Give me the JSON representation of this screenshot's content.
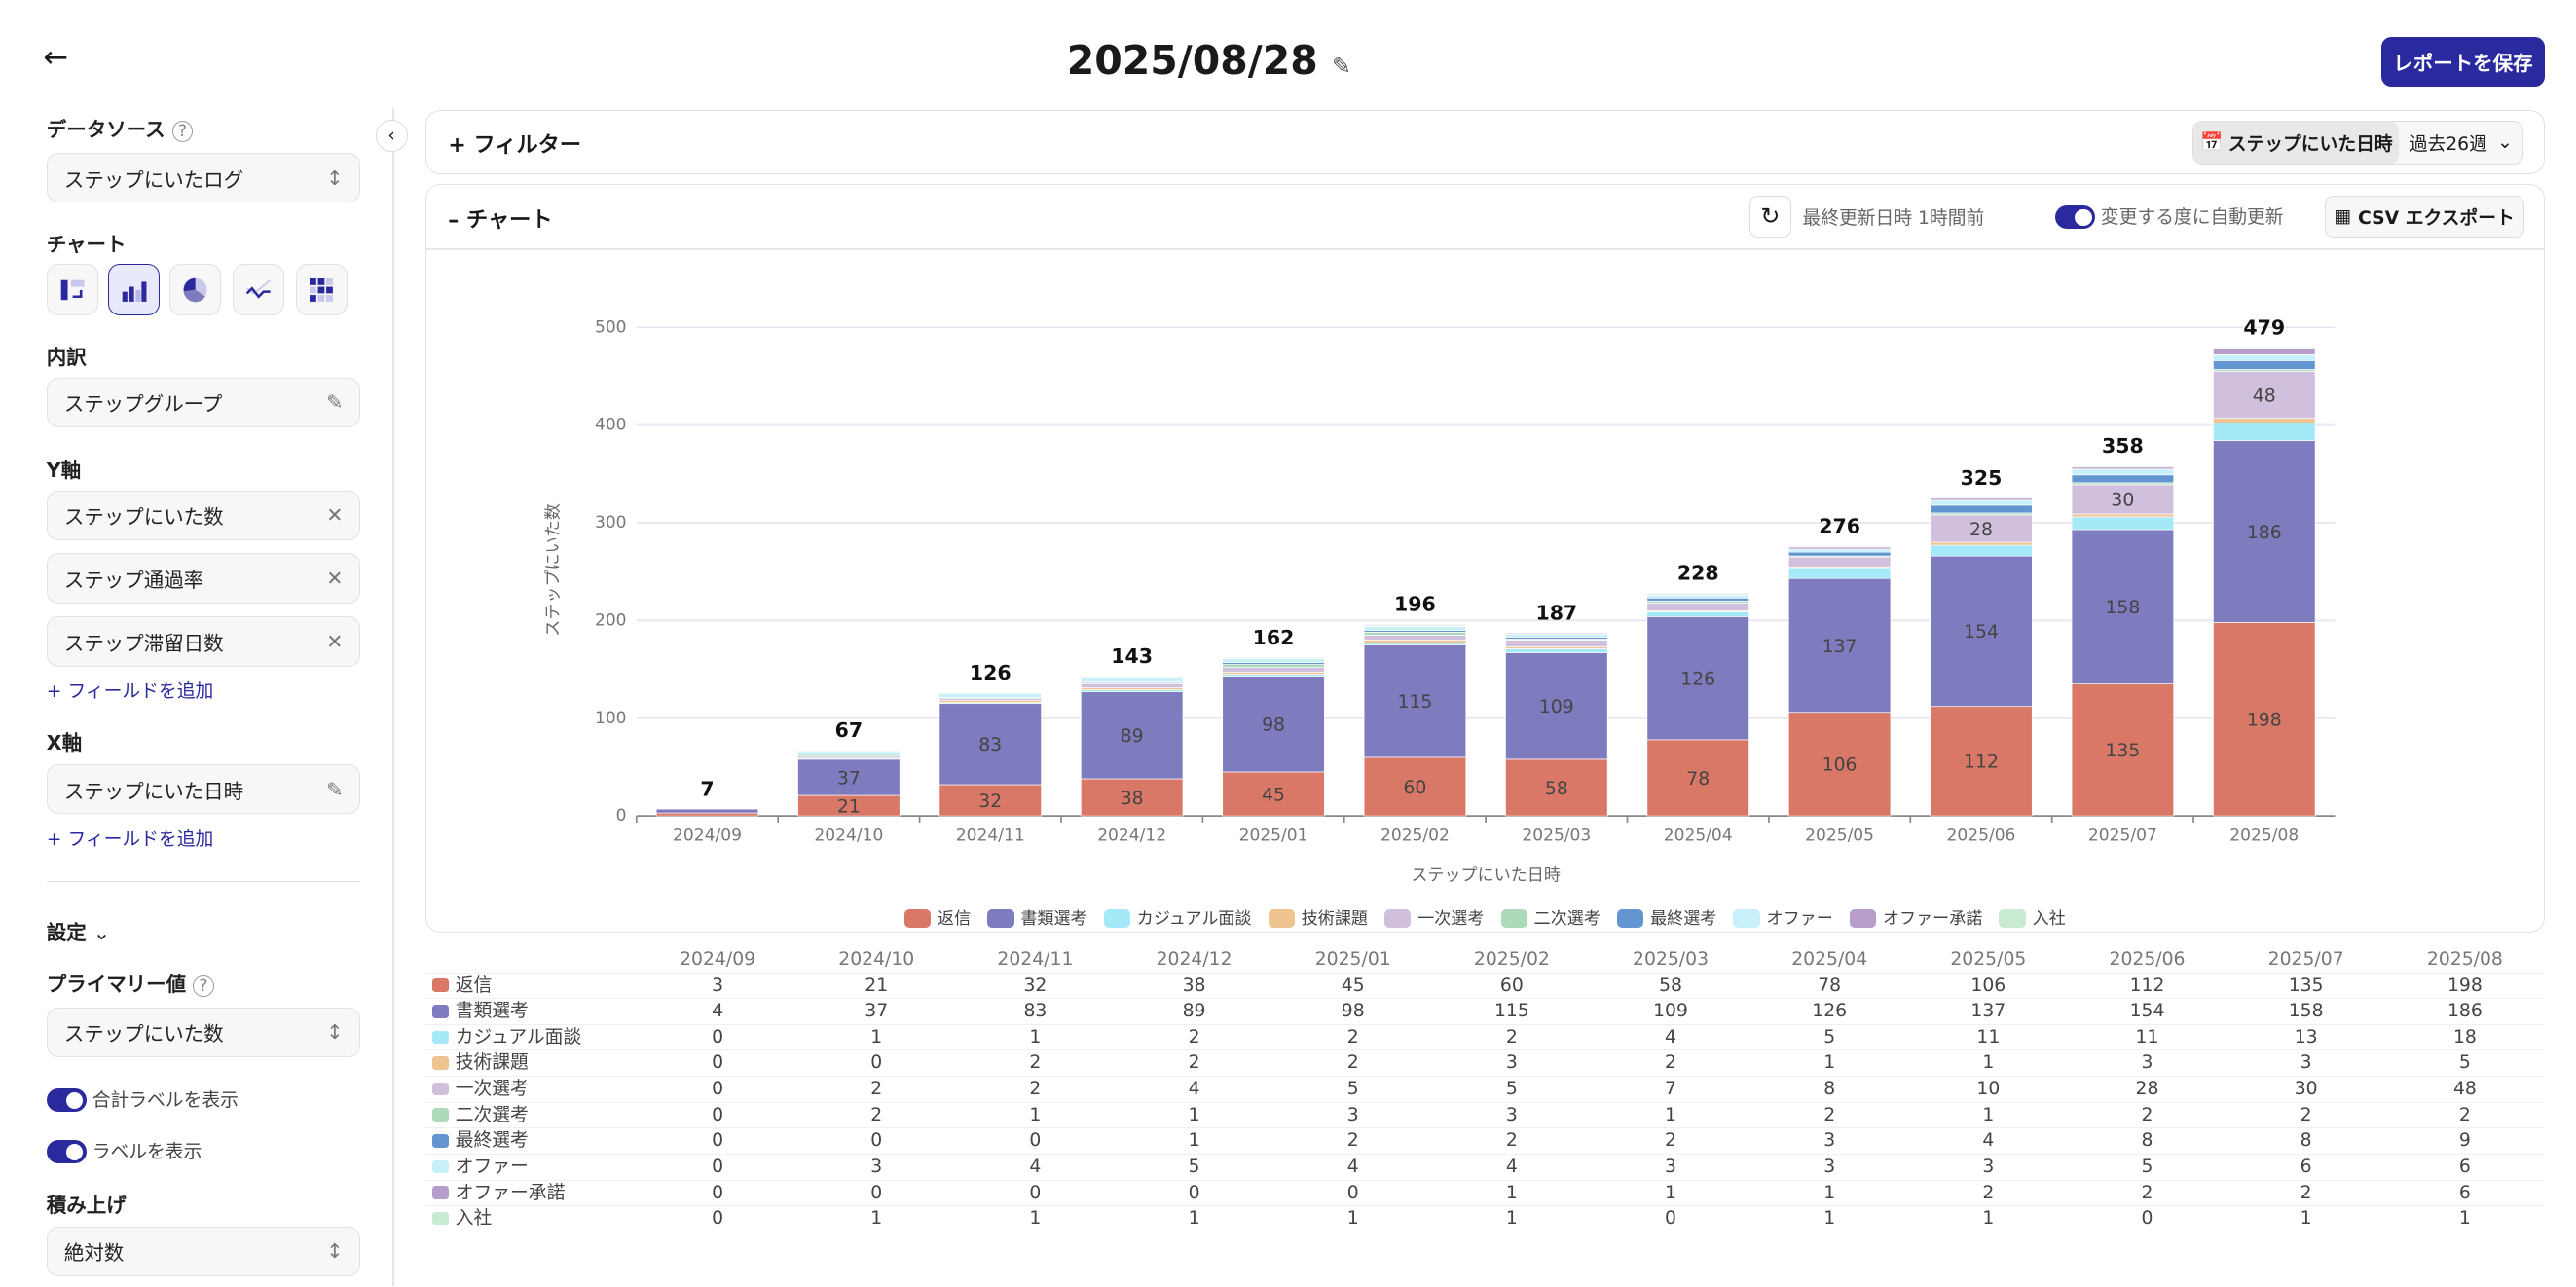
{
  "header": {
    "title": "2025/08/28",
    "save_label": "レポートを保存"
  },
  "sidebar": {
    "data_source_label": "データソース",
    "data_source_value": "ステップにいたログ",
    "chart_label": "チャート",
    "breakdown_label": "内訳",
    "breakdown_value": "ステップグループ",
    "y_axis_label": "Y軸",
    "y_fields": [
      "ステップにいた数",
      "ステップ通過率",
      "ステップ滞留日数"
    ],
    "add_field": "フィールドを追加",
    "x_axis_label": "X軸",
    "x_field": "ステップにいた日時",
    "settings_label": "設定",
    "primary_label": "プライマリー値",
    "primary_value": "ステップにいた数",
    "show_total_label": "合計ラベルを表示",
    "show_label": "ラベルを表示",
    "stack_label": "積み上げ",
    "stack_value": "絶対数"
  },
  "filter": {
    "label": "フィルター",
    "date_field": "ステップにいた日時",
    "range": "過去26週"
  },
  "chart_panel": {
    "label": "チャート",
    "last_updated": "最終更新日時 1時間前",
    "auto_update": "変更する度に自動更新",
    "csv_export": "CSV エクスポート"
  },
  "chart_data": {
    "type": "bar",
    "stacked": true,
    "xlabel": "ステップにいた日時",
    "ylabel": "ステップにいた数",
    "ylim": [
      0,
      500
    ],
    "yticks": [
      0,
      100,
      200,
      300,
      400,
      500
    ],
    "categories": [
      "2024/09",
      "2024/10",
      "2024/11",
      "2024/12",
      "2025/01",
      "2025/02",
      "2025/03",
      "2025/04",
      "2025/05",
      "2025/06",
      "2025/07",
      "2025/08"
    ],
    "totals": [
      7,
      67,
      126,
      143,
      162,
      196,
      187,
      228,
      276,
      325,
      358,
      479
    ],
    "series": [
      {
        "name": "返信",
        "color": "#da7868",
        "values": [
          3,
          21,
          32,
          38,
          45,
          60,
          58,
          78,
          106,
          112,
          135,
          198
        ]
      },
      {
        "name": "書類選考",
        "color": "#7e7bbf",
        "values": [
          4,
          37,
          83,
          89,
          98,
          115,
          109,
          126,
          137,
          154,
          158,
          186
        ]
      },
      {
        "name": "カジュアル面談",
        "color": "#a5e8f8",
        "values": [
          0,
          1,
          1,
          2,
          2,
          2,
          4,
          5,
          11,
          11,
          13,
          18
        ]
      },
      {
        "name": "技術課題",
        "color": "#f0c490",
        "values": [
          0,
          0,
          2,
          2,
          2,
          3,
          2,
          1,
          1,
          3,
          3,
          5
        ]
      },
      {
        "name": "一次選考",
        "color": "#d0bfdd",
        "values": [
          0,
          2,
          2,
          4,
          5,
          5,
          7,
          8,
          10,
          28,
          30,
          48
        ]
      },
      {
        "name": "二次選考",
        "color": "#addaba",
        "values": [
          0,
          2,
          1,
          1,
          3,
          3,
          1,
          2,
          1,
          2,
          2,
          2
        ]
      },
      {
        "name": "最終選考",
        "color": "#6396d0",
        "values": [
          0,
          0,
          0,
          1,
          2,
          2,
          2,
          3,
          4,
          8,
          8,
          9
        ]
      },
      {
        "name": "オファー",
        "color": "#c8f0fa",
        "values": [
          0,
          3,
          4,
          5,
          4,
          4,
          3,
          3,
          3,
          5,
          6,
          6
        ]
      },
      {
        "name": "オファー承諾",
        "color": "#b79dcc",
        "values": [
          0,
          0,
          0,
          0,
          0,
          1,
          1,
          1,
          2,
          2,
          2,
          6
        ]
      },
      {
        "name": "入社",
        "color": "#c8ead0",
        "values": [
          0,
          1,
          1,
          1,
          1,
          1,
          0,
          1,
          1,
          0,
          1,
          1
        ]
      }
    ]
  }
}
